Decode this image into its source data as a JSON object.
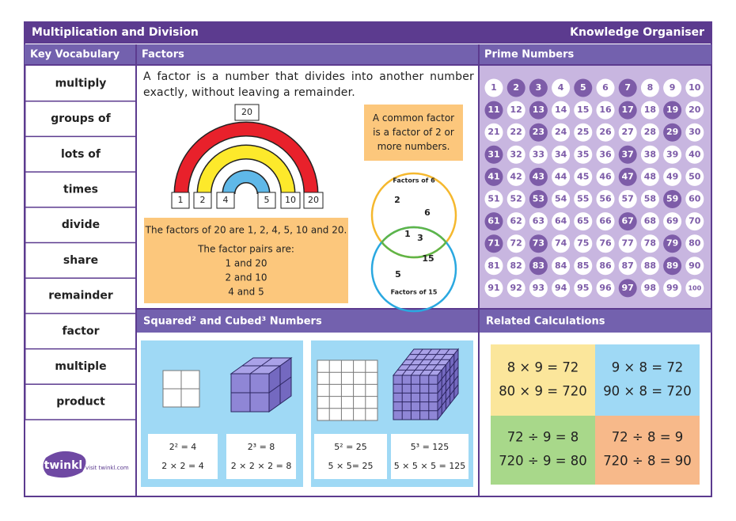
{
  "header": {
    "title": "Multiplication and Division",
    "subtitle": "Knowledge Organiser"
  },
  "vocabulary": {
    "heading": "Key Vocabulary",
    "words": [
      "multiply",
      "groups of",
      "lots of",
      "times",
      "divide",
      "share",
      "remainder",
      "factor",
      "multiple",
      "product"
    ]
  },
  "factors": {
    "heading": "Factors",
    "definition": "A factor is a number that divides into another number exactly, without leaving a remainder.",
    "rainbow": {
      "top": 20,
      "bottom": [
        1,
        2,
        4,
        5,
        10,
        20
      ]
    },
    "common_factor_note": "A common factor is a factor of 2 or more numbers.",
    "pairs_box": {
      "statement": "The factors of 20 are 1, 2, 4, 5, 10 and 20.",
      "pairs_heading": "The factor pairs are:",
      "pairs": [
        "1 and 20",
        "2 and 10",
        "4 and 5"
      ]
    },
    "venn": {
      "left_label": "Factors of 6",
      "right_label": "Factors of 15",
      "top_only": [
        2,
        6
      ],
      "both": [
        1,
        3
      ],
      "bottom_only": [
        15,
        5
      ]
    }
  },
  "prime_numbers": {
    "heading": "Prime Numbers",
    "numbers": [
      1,
      2,
      3,
      4,
      5,
      6,
      7,
      8,
      9,
      10,
      11,
      12,
      13,
      14,
      15,
      16,
      17,
      18,
      19,
      20,
      21,
      22,
      23,
      24,
      25,
      26,
      27,
      28,
      29,
      30,
      31,
      32,
      33,
      34,
      35,
      36,
      37,
      38,
      39,
      40,
      41,
      42,
      43,
      44,
      45,
      46,
      47,
      48,
      49,
      50,
      51,
      52,
      53,
      54,
      55,
      56,
      57,
      58,
      59,
      60,
      61,
      62,
      63,
      64,
      65,
      66,
      67,
      68,
      69,
      70,
      71,
      72,
      73,
      74,
      75,
      76,
      77,
      78,
      79,
      80,
      81,
      82,
      83,
      84,
      85,
      86,
      87,
      88,
      89,
      90,
      91,
      92,
      93,
      94,
      95,
      96,
      97,
      98,
      99,
      100
    ],
    "highlighted": [
      2,
      3,
      5,
      7,
      11,
      13,
      17,
      19,
      23,
      29,
      31,
      37,
      41,
      43,
      47,
      53,
      59,
      61,
      67,
      71,
      73,
      79,
      83,
      89,
      97
    ]
  },
  "squared_cubed": {
    "heading": "Squared² and Cubed³ Numbers",
    "panels": [
      {
        "square": "2² = 4",
        "square_expansion": "2 × 2 = 4",
        "cube": "2³ = 8",
        "cube_expansion": "2 × 2 × 2 = 8"
      },
      {
        "square": "5² = 25",
        "square_expansion": "5 × 5= 25",
        "cube": "5³ = 125",
        "cube_expansion": "5 × 5 × 5 = 125"
      }
    ]
  },
  "related_calculations": {
    "heading": "Related Calculations",
    "boxes": [
      [
        "8 × 9 = 72",
        "80 × 9 = 720"
      ],
      [
        "9 × 8 = 72",
        "90 × 8 = 720"
      ],
      [
        "72 ÷ 9 = 8",
        "720 ÷ 9 = 80"
      ],
      [
        "72 ÷ 8 = 9",
        "720 ÷ 8 = 90"
      ]
    ]
  },
  "logo": {
    "brand": "twinkl",
    "url": "visit twinkl.com"
  }
}
